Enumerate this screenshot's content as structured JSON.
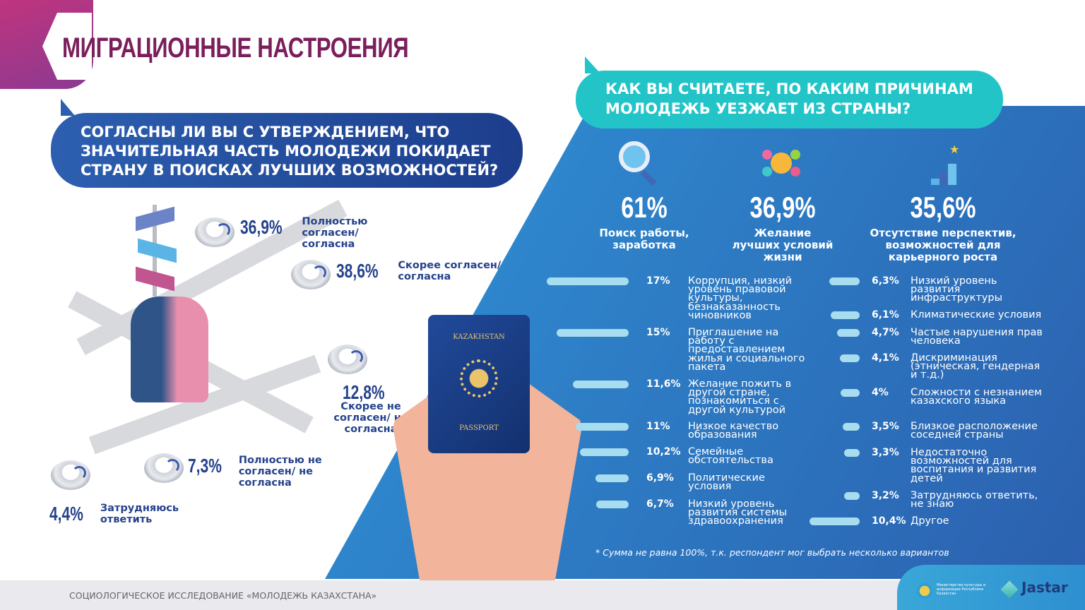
{
  "header": {
    "title": "МИГРАЦИОННЫЕ НАСТРОЕНИЯ"
  },
  "question1": {
    "text": "СОГЛАСНЫ ЛИ ВЫ С УТВЕРЖДЕНИЕМ, ЧТО ЗНАЧИТЕЛЬНАЯ ЧАСТЬ МОЛОДЕЖИ ПОКИДАЕТ СТРАНУ В ПОИСКАХ ЛУЧШИХ ВОЗМОЖНОСТЕЙ?",
    "options": [
      {
        "pct": "36,9%",
        "label": "Полностью согласен/согласна"
      },
      {
        "pct": "38,6%",
        "label": "Скорее согласен/ согласна"
      },
      {
        "pct": "12,8%",
        "label": "Скорее не согласен/ не согласна"
      },
      {
        "pct": "7,3%",
        "label": "Полностью не согласен/ не согласна"
      },
      {
        "pct": "4,4%",
        "label": "Затрудняюсь ответить"
      }
    ]
  },
  "passport": {
    "country": "KAZAKHSTAN",
    "label": "PASSPORT"
  },
  "question2": {
    "text": "КАК ВЫ СЧИТАЕТЕ, ПО КАКИМ ПРИЧИНАМ МОЛОДЕЖЬ УЕЗЖАЕТ ИЗ СТРАНЫ?",
    "top": [
      {
        "pct": "61%",
        "label": "Поиск работы, заработка",
        "icon": "job-search-icon"
      },
      {
        "pct": "36,9%",
        "label": "Желание лучших условий жизни",
        "icon": "living-conditions-icon"
      },
      {
        "pct": "35,6%",
        "label": "Отсутствие перспектив, возможностей для карьерного роста",
        "icon": "career-growth-icon"
      }
    ],
    "footnote": "* Сумма не равна 100%, т.к. респондент мог выбрать несколько вариантов"
  },
  "chart_data": [
    {
      "type": "bar",
      "title": "СОГЛАСНЫ ЛИ ВЫ С УТВЕРЖДЕНИЕМ, ЧТО ЗНАЧИТЕЛЬНАЯ ЧАСТЬ МОЛОДЕЖИ ПОКИДАЕТ СТРАНУ В ПОИСКАХ ЛУЧШИХ ВОЗМОЖНОСТЕЙ?",
      "categories": [
        "Полностью согласен/согласна",
        "Скорее согласен/ согласна",
        "Скорее не согласен/ не согласна",
        "Полностью не согласен/ не согласна",
        "Затрудняюсь ответить"
      ],
      "values": [
        36.9,
        38.6,
        12.8,
        7.3,
        4.4
      ],
      "unit": "%"
    },
    {
      "type": "bar",
      "orientation": "horizontal",
      "title": "КАК ВЫ СЧИТАЕТЕ, ПО КАКИМ ПРИЧИНАМ МОЛОДЕЖЬ УЕЗЖАЕТ ИЗ СТРАНЫ?",
      "unit": "%",
      "left": [
        {
          "label": "Коррупция, низкий уровень правовой культуры, безнаказанность чиновников",
          "value": 17,
          "text": "17%"
        },
        {
          "label": "Приглашение на работу с предоставлением жилья и социального пакета",
          "value": 15,
          "text": "15%"
        },
        {
          "label": "Желание пожить в другой стране, познакомиться с другой культурой",
          "value": 11.6,
          "text": "11,6%"
        },
        {
          "label": "Низкое качество образования",
          "value": 11,
          "text": "11%"
        },
        {
          "label": "Семейные обстоятельства",
          "value": 10.2,
          "text": "10,2%"
        },
        {
          "label": "Политические условия",
          "value": 6.9,
          "text": "6,9%"
        },
        {
          "label": "Низкий уровень развития системы здравоохранения",
          "value": 6.7,
          "text": "6,7%"
        }
      ],
      "right": [
        {
          "label": "Низкий уровень развития инфраструктуры",
          "value": 6.3,
          "text": "6,3%"
        },
        {
          "label": "Климатические условия",
          "value": 6.1,
          "text": "6,1%"
        },
        {
          "label": "Частые нарушения прав человека",
          "value": 4.7,
          "text": "4,7%"
        },
        {
          "label": "Дискриминация (этническая, гендерная и т.д.)",
          "value": 4.1,
          "text": "4,1%"
        },
        {
          "label": "Сложности с незнанием казахского языка",
          "value": 4,
          "text": "4%"
        },
        {
          "label": "Близкое расположение соседней страны",
          "value": 3.5,
          "text": "3,5%"
        },
        {
          "label": "Недостаточно возможностей для воспитания и развития детей",
          "value": 3.3,
          "text": "3,3%"
        },
        {
          "label": "Затрудняюсь ответить, не знаю",
          "value": 3.2,
          "text": "3,2%"
        },
        {
          "label": "Другое",
          "value": 10.4,
          "text": "10,4%"
        }
      ],
      "colors": {
        "bar": "#a8dcef",
        "background": "#2e86cc"
      }
    }
  ],
  "footer": {
    "text": "СОЦИОЛОГИЧЕСКОЕ ИССЛЕДОВАНИЕ «МОЛОДЕЖЬ КАЗАХСТАНА»",
    "ministry": "Министерство культуры и информации Республики Казахстан",
    "brand": "Jastar"
  }
}
